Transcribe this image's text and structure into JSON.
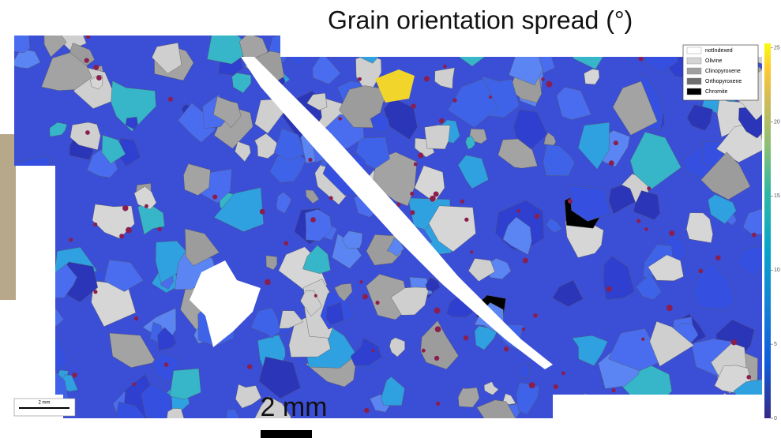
{
  "title": "Grain orientation spread (°)",
  "legend": [
    {
      "name": "notIndexed",
      "color": "#ffffff"
    },
    {
      "name": "Olivine",
      "color": "#d4d4d4"
    },
    {
      "name": "Clinopyroxene",
      "color": "#a0a0a0"
    },
    {
      "name": "Orthopyroxene",
      "color": "#6e6e6e"
    },
    {
      "name": "Chromite",
      "color": "#000000"
    }
  ],
  "colorbar": {
    "range": [
      0,
      25.3
    ],
    "ticks": [
      0,
      5,
      10,
      15,
      20,
      25
    ]
  },
  "scale_bar": {
    "label": "2 mm"
  },
  "caption": "2 mm"
}
